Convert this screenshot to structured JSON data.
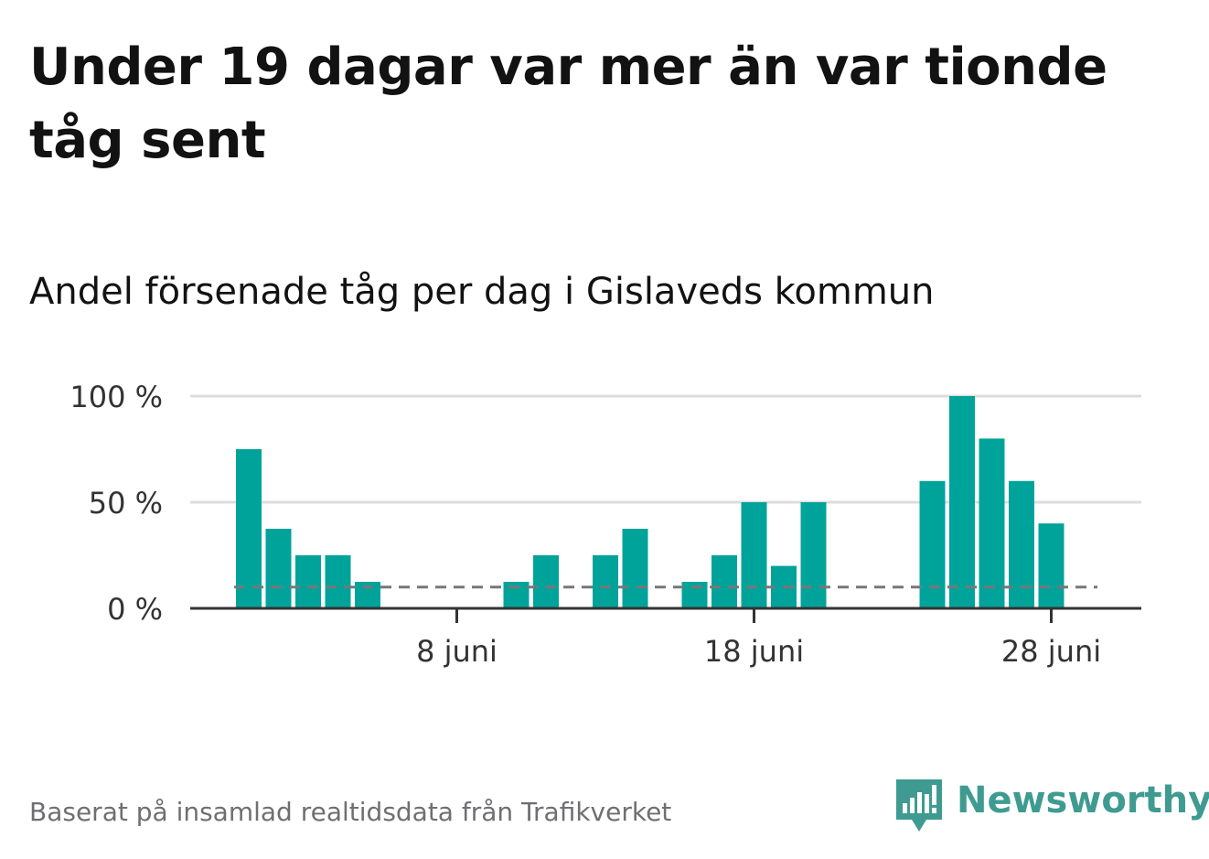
{
  "title": "Under 19 dagar var mer än var tionde tåg sent",
  "subtitle": "Andel försenade tåg per dag i Gislaveds kommun",
  "source": "Baserat på insamlad realtidsdata från Trafikverket",
  "brand": {
    "name": "Newsworthy",
    "color": "#3f9b91",
    "icon": "newsworthy-logo-icon"
  },
  "colors": {
    "bar": "#00a39a",
    "reference_line": "#77777b",
    "grid": "#dcdcdc",
    "axis": "#333333"
  },
  "chart_data": {
    "type": "bar",
    "x": [
      "2022-06-01",
      "2022-06-02",
      "2022-06-03",
      "2022-06-04",
      "2022-06-05",
      "2022-06-06",
      "2022-06-07",
      "2022-06-08",
      "2022-06-09",
      "2022-06-10",
      "2022-06-11",
      "2022-06-12",
      "2022-06-13",
      "2022-06-14",
      "2022-06-15",
      "2022-06-16",
      "2022-06-17",
      "2022-06-18",
      "2022-06-19",
      "2022-06-20",
      "2022-06-21",
      "2022-06-22",
      "2022-06-23",
      "2022-06-24",
      "2022-06-25",
      "2022-06-26",
      "2022-06-27",
      "2022-06-28",
      "2022-06-29"
    ],
    "values": [
      75,
      37.5,
      25,
      25,
      12.5,
      0,
      0,
      0,
      0,
      12.5,
      25,
      0,
      25,
      37.5,
      0,
      12.5,
      25,
      50,
      20,
      50,
      0,
      0,
      0,
      60,
      100,
      80,
      60,
      40,
      0
    ],
    "reference_line": 10,
    "xticks": [
      "8 juni",
      "18 juni",
      "28 juni"
    ],
    "xtick_dates": [
      "2022-06-08",
      "2022-06-18",
      "2022-06-28"
    ],
    "yticks": [
      "0 %",
      "50 %",
      "100 %"
    ],
    "ytick_values": [
      0,
      50,
      100
    ],
    "ylim": [
      0,
      100
    ],
    "xlabel": "",
    "ylabel": "",
    "grid": true,
    "legend": "none"
  }
}
